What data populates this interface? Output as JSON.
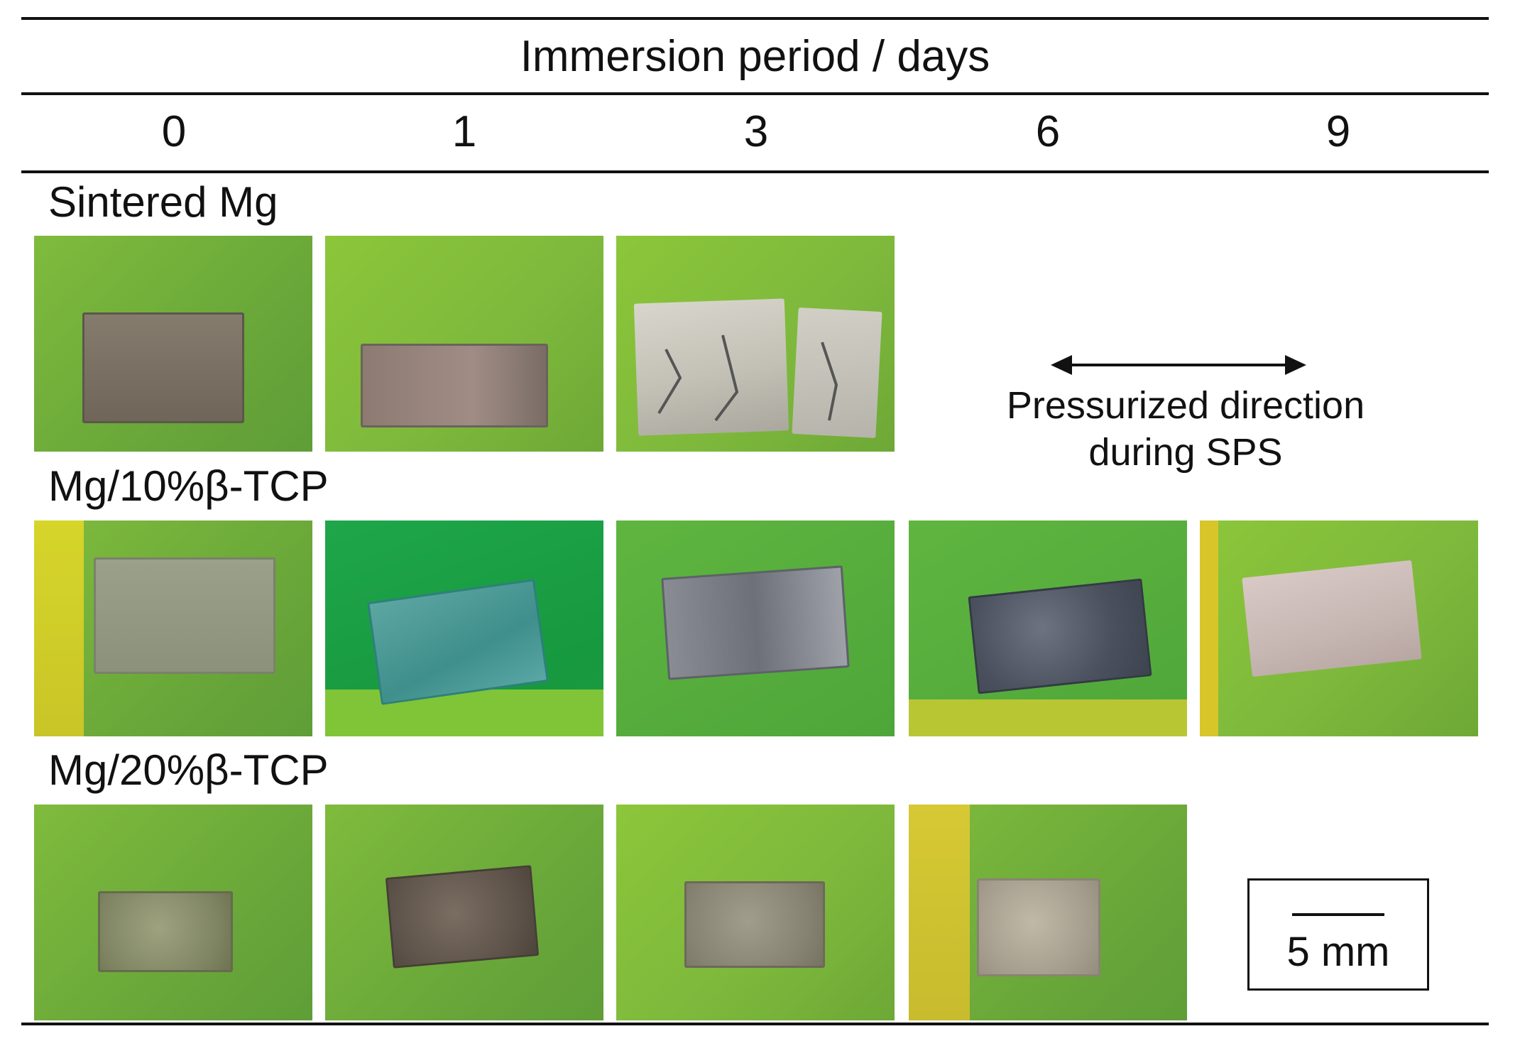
{
  "header": {
    "title": "Immersion period / days",
    "days": [
      "0",
      "1",
      "3",
      "6",
      "9"
    ]
  },
  "rows": [
    {
      "label": "Sintered Mg",
      "panels_shown": [
        true,
        true,
        true,
        false,
        false
      ]
    },
    {
      "label": "Mg/10%β-TCP",
      "panels_shown": [
        true,
        true,
        true,
        true,
        true
      ]
    },
    {
      "label": "Mg/20%β-TCP",
      "panels_shown": [
        true,
        true,
        true,
        true,
        false
      ]
    }
  ],
  "annotation": {
    "direction_label_line1": "Pressurized direction",
    "direction_label_line2": "during SPS"
  },
  "scale_bar": {
    "label": "5 mm"
  },
  "colors": {
    "background_green": "#7ab83c",
    "rule_color": "#111111"
  }
}
